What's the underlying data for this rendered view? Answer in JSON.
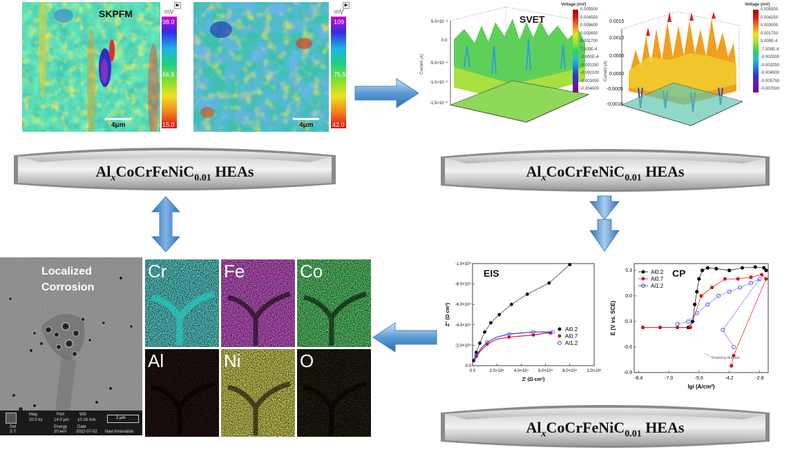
{
  "banners": [
    {
      "prefix": "Al",
      "sub_x": "x",
      "mid": "CoCrFeNiC",
      "sub_n": "0.01",
      "suffix": " HEAs"
    },
    {
      "prefix": "Al",
      "sub_x": "x",
      "mid": "CoCrFeNiC",
      "sub_n": "0.01",
      "suffix": " HEAs"
    },
    {
      "prefix": "Al",
      "sub_x": "x",
      "mid": "CoCrFeNiC",
      "sub_n": "0.01",
      "suffix": " HEAs"
    }
  ],
  "skpfm": {
    "label": "SKPFM",
    "unit": "mV",
    "left_map": {
      "max": "98.0",
      "mid": "56.5",
      "min": "15.0",
      "scale": "4μm"
    },
    "right_map": {
      "max": "109",
      "mid": "75.5",
      "min": "42.0",
      "scale": "4μm"
    }
  },
  "svet": {
    "label": "SVET",
    "left_plot": {
      "legend_title": "Voltage (mV)",
      "legend_values": [
        "0.005500",
        "0.004550",
        "0.003600",
        "0.002650",
        "0.001700",
        "7.500E-4",
        "-2.000E-4",
        "-0.001150",
        "-0.002100",
        "-0.003050",
        "-0.004000"
      ],
      "y_ticks": [
        "5.0×10⁻⁴",
        "0.0",
        "-5.0×10⁻⁴",
        "-1.0×10⁻³",
        "-1.5×10⁻³"
      ],
      "y_label": "Current (A)"
    },
    "right_plot": {
      "legend_title": "Voltage (mV)",
      "legend_values": [
        "0.005500",
        "0.004250",
        "0.003000",
        "0.001750",
        "5.000E-4",
        "-7.500E-4",
        "-0.002000",
        "-0.003250",
        "-0.004500",
        "-0.005750",
        "-0.007000"
      ],
      "y_ticks": [
        "0.0015",
        "0.0010",
        "0.0005",
        "0.0000",
        "-0.0005",
        "-0.0010"
      ],
      "y_label": "Current (A)"
    }
  },
  "eis": {
    "label": "EIS",
    "ylabel": "Z'' (Ω cm²)",
    "xlabel": "Z' (Ω cm²)",
    "x_ticks": [
      "0.0",
      "2.0×10⁴",
      "4.0×10⁴",
      "6.0×10⁴",
      "8.0×10⁴",
      "1.0×10⁵"
    ],
    "y_ticks": [
      "-1.0×10⁵",
      "-8.0×10⁴",
      "-6.0×10⁴",
      "-4.0×10⁴",
      "-2.0×10⁴",
      "0.0"
    ],
    "legend": [
      "Al0.2",
      "Al0.7",
      "Al1.2"
    ]
  },
  "cp": {
    "label": "CP",
    "ylabel": "E (V vs. SCE)",
    "xlabel": "lgi (A/cm²)",
    "x_ticks": [
      "-8.4",
      "-7.0",
      "-5.6",
      "-4.2",
      "-2.8"
    ],
    "y_ticks": [
      "0.3",
      "0.0",
      "-0.3",
      "-0.6",
      "-0.9"
    ],
    "legend": [
      "Al0.2",
      "Al0.7",
      "Al1.2"
    ],
    "annotation": "Scanning direction"
  },
  "sem": {
    "label_line1": "Localized",
    "label_line2": "Corrosion",
    "meta": [
      "Mag",
      "20.0 kx",
      "Det",
      "S.T",
      "Port",
      "14.0 μm",
      "Energy",
      "20 keV",
      "WD",
      "10.18 mm",
      "Date",
      "2022-07-02",
      "Navi Innovation"
    ],
    "scale": "2 μm"
  },
  "eds_maps": [
    {
      "element": "Cr",
      "color": "#20d8d0"
    },
    {
      "element": "Fe",
      "color": "#c020c8"
    },
    {
      "element": "Co",
      "color": "#20c830"
    },
    {
      "element": "Al",
      "color": "#c02020"
    },
    {
      "element": "Ni",
      "color": "#d8d020"
    },
    {
      "element": "O",
      "color": "#e07018"
    }
  ],
  "chart_data": [
    {
      "type": "scatter",
      "title": "EIS",
      "xlabel": "Z' (Ω cm²)",
      "ylabel": "Z'' (Ω cm²)",
      "xlim": [
        0,
        100000
      ],
      "ylim": [
        0,
        -100000
      ],
      "series": [
        {
          "name": "Al0.2",
          "color": "#000000",
          "x": [
            1000,
            3000,
            6000,
            10000,
            15000,
            22000,
            32000,
            45000,
            63000,
            80000
          ],
          "y": [
            -5000,
            -13000,
            -22000,
            -33000,
            -42000,
            -50000,
            -60000,
            -70000,
            -81000,
            -99000
          ]
        },
        {
          "name": "Al0.7",
          "color": "#e01010",
          "x": [
            1000,
            3000,
            7000,
            12000,
            20000,
            30000,
            40000,
            50000,
            60000,
            64000
          ],
          "y": [
            -3000,
            -9000,
            -15000,
            -21000,
            -26000,
            -28000,
            -29000,
            -30000,
            -32000,
            -32000
          ]
        },
        {
          "name": "Al1.2",
          "color": "#3040e0",
          "x": [
            1000,
            3000,
            7000,
            12000,
            20000,
            30000,
            40000,
            50000,
            60000,
            66000
          ],
          "y": [
            -3000,
            -10000,
            -17000,
            -23000,
            -28000,
            -31000,
            -32000,
            -33000,
            -33000,
            -33000
          ]
        }
      ]
    },
    {
      "type": "scatter",
      "title": "CP",
      "xlabel": "lgi (A/cm²)",
      "ylabel": "E (V vs. SCE)",
      "xlim": [
        -8.6,
        -2.4
      ],
      "ylim": [
        -0.9,
        0.38
      ],
      "series": [
        {
          "name": "Al0.2",
          "color": "#000000",
          "x": [
            -8.2,
            -7.4,
            -6.6,
            -6.1,
            -5.9,
            -5.8,
            -5.7,
            -5.6,
            -5.45,
            -5.2,
            -4.8,
            -4.2,
            -3.6,
            -3.0,
            -2.6,
            -2.5
          ],
          "y": [
            -0.37,
            -0.37,
            -0.37,
            -0.37,
            -0.3,
            -0.1,
            0.05,
            0.2,
            0.3,
            0.33,
            0.32,
            0.3,
            0.33,
            0.34,
            0.33,
            0.3
          ]
        },
        {
          "name": "Al0.7",
          "color": "#e01010",
          "x": [
            -8.2,
            -7.4,
            -6.6,
            -6.0,
            -5.5,
            -5.0,
            -4.4,
            -3.8,
            -3.2,
            -2.7,
            -2.5,
            -4.0,
            -4.1
          ],
          "y": [
            -0.37,
            -0.37,
            -0.37,
            -0.37,
            0.0,
            0.1,
            0.2,
            0.2,
            0.22,
            0.25,
            0.2,
            -0.7,
            -0.82
          ]
        },
        {
          "name": "Al1.2",
          "color": "#3040e0",
          "x": [
            -6.6,
            -6.1,
            -5.7,
            -5.2,
            -4.7,
            -4.2,
            -3.7,
            -3.2,
            -2.8,
            -4.5,
            -4.0
          ],
          "y": [
            -0.33,
            -0.3,
            -0.2,
            -0.1,
            0.0,
            0.05,
            0.1,
            0.15,
            0.2,
            -0.4,
            -0.6
          ]
        }
      ]
    }
  ]
}
